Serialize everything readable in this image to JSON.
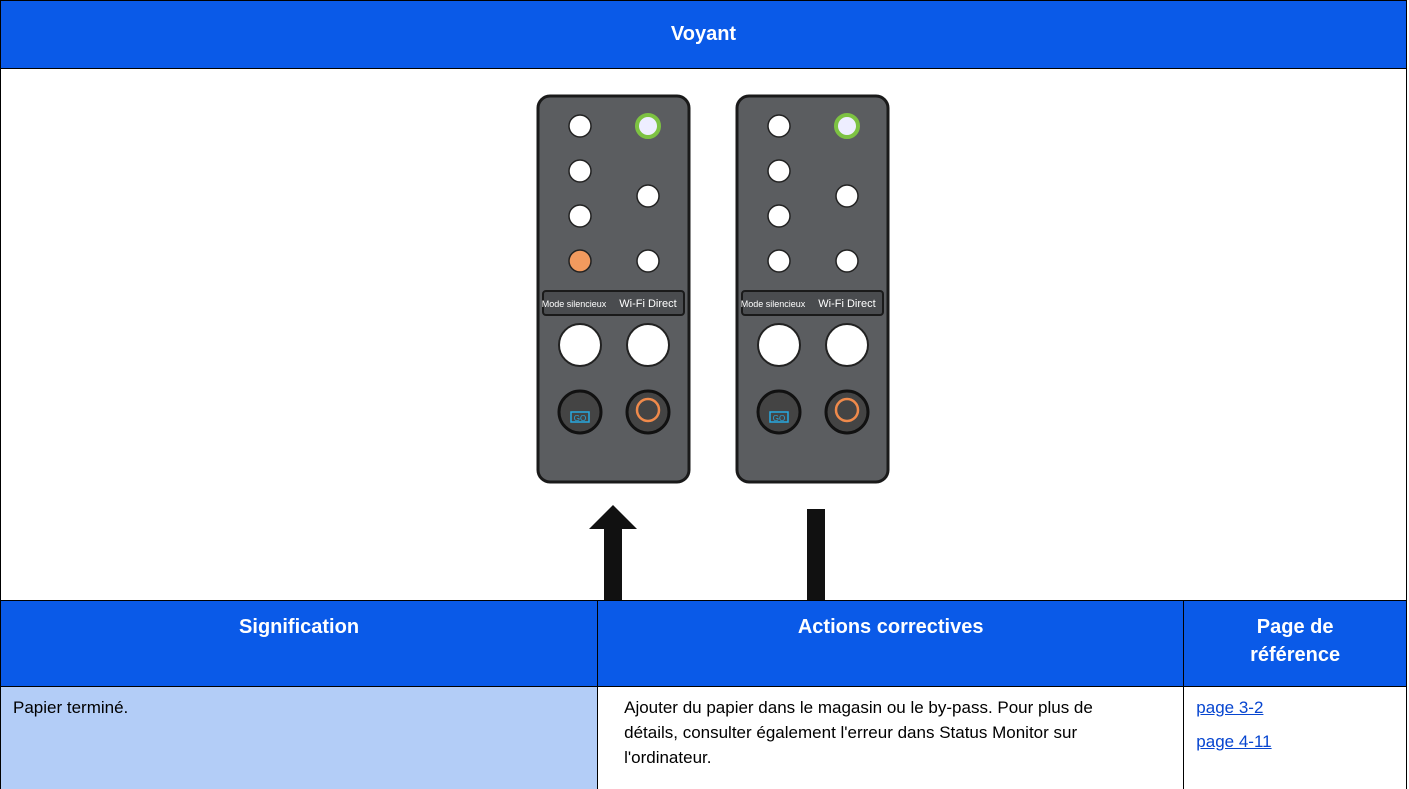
{
  "header": {
    "title": "Voyant"
  },
  "panel": {
    "labels": [
      "Mode silencieux",
      "Wi-Fi Direct",
      "GO"
    ]
  },
  "table": {
    "headers": [
      "Signification",
      "Actions correctives",
      "Page de référence"
    ],
    "rows": [
      [
        "Papier terminé.",
        "Ajouter du papier dans le magasin ou le by-pass. Pour plus de détails, consulter également l'erreur dans Status Monitor sur l'ordinateur.",
        [
          "page 3-2",
          "page 4-11"
        ]
      ]
    ]
  }
}
